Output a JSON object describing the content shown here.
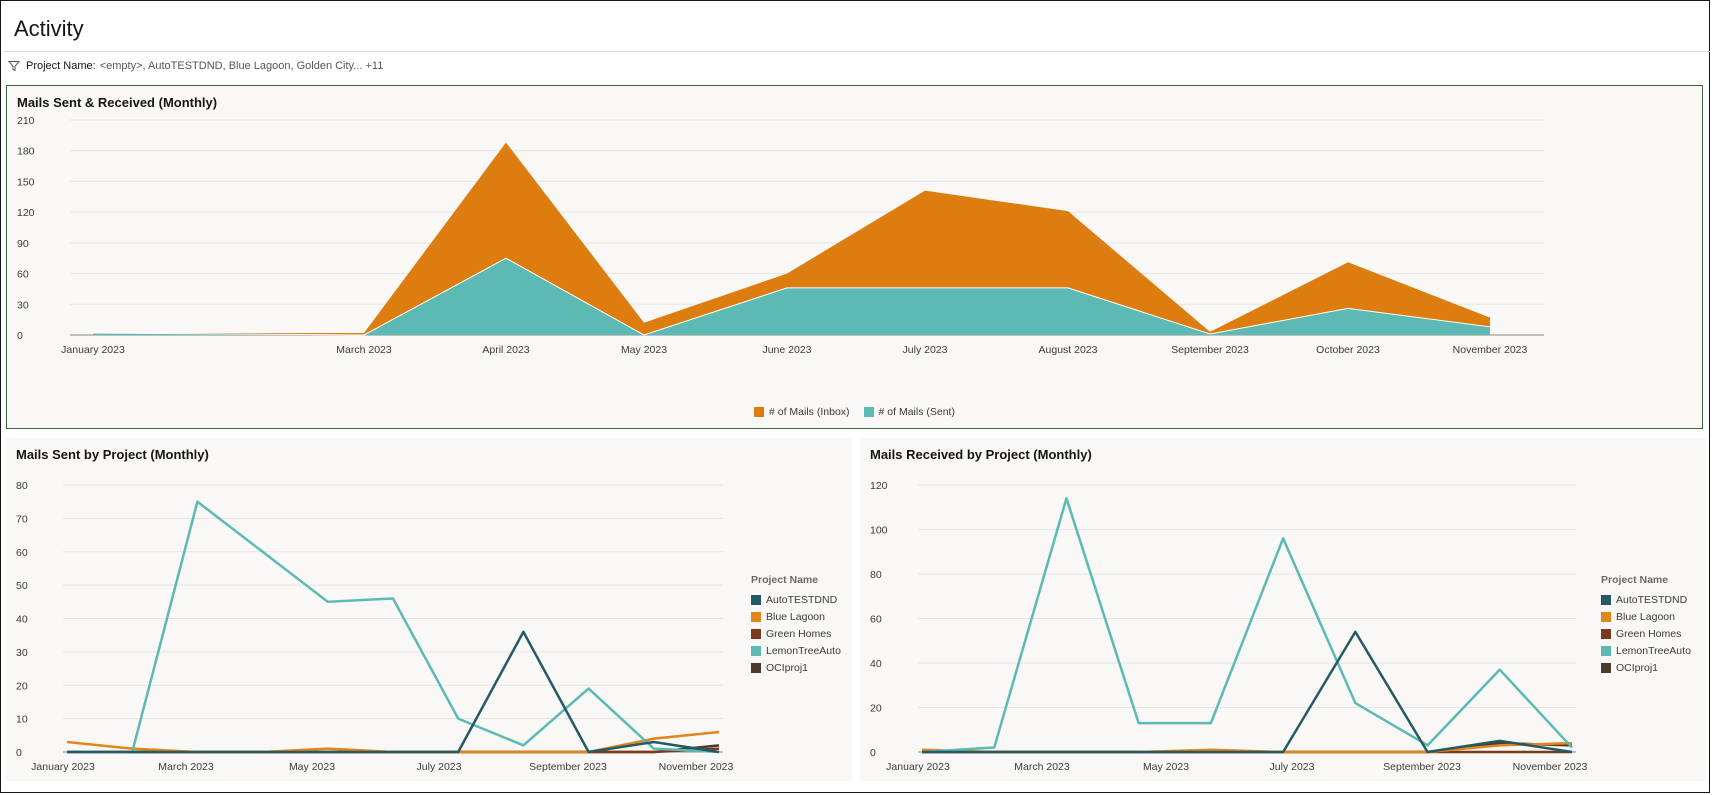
{
  "page": {
    "title": "Activity"
  },
  "filter": {
    "label": "Project Name:",
    "value": "<empty>, AutoTESTDND, Blue Lagoon, Golden City... +11",
    "icon": "filter-icon"
  },
  "colors": {
    "inbox": "#DD7D10",
    "sent": "#5CB9B3",
    "AutoTESTDND": "#235A63",
    "Blue Lagoon": "#E4851C",
    "Green Homes": "#7A3B1C",
    "LemonTreeAuto": "#5CB9B3",
    "OCIproj1": "#4A3A30"
  },
  "charts": {
    "top": {
      "title": "Mails Sent & Received (Monthly)",
      "chart_data": {
        "type": "area",
        "stacked": true,
        "categories": [
          "January 2023",
          "March 2023",
          "April 2023",
          "May 2023",
          "June 2023",
          "July 2023",
          "August 2023",
          "September 2023",
          "October 2023",
          "November 2023"
        ],
        "ylim": [
          0,
          210
        ],
        "yticks": [
          0,
          30,
          60,
          90,
          120,
          150,
          180,
          210
        ],
        "series": [
          {
            "name": "# of Mails (Sent)",
            "values": [
              2,
              0,
              75,
              0,
              46,
              46,
              46,
              1,
              26,
              8
            ]
          },
          {
            "name": "# of Mails (Inbox)",
            "values": [
              0,
              2,
              113,
              12,
              14,
              95,
              75,
              2,
              45,
              9
            ]
          }
        ],
        "legend": "bottom",
        "grid": true
      }
    },
    "sent": {
      "title": "Mails Sent by Project (Monthly)",
      "legend_title": "Project Name",
      "chart_data": {
        "type": "line",
        "xticks": [
          "January 2023",
          "March 2023",
          "May 2023",
          "July 2023",
          "September 2023",
          "November 2023"
        ],
        "ylim": [
          0,
          80
        ],
        "yticks": [
          0,
          10,
          20,
          30,
          40,
          50,
          60,
          70,
          80
        ],
        "legend": "right",
        "series": [
          {
            "name": "AutoTESTDND",
            "values": [
              0,
              0,
              0,
              0,
              0,
              0,
              0,
              36,
              0,
              3,
              0
            ]
          },
          {
            "name": "Blue Lagoon",
            "values": [
              3,
              1,
              0,
              0,
              1,
              0,
              0,
              0,
              0,
              4,
              6
            ]
          },
          {
            "name": "Green Homes",
            "values": [
              0,
              0,
              0,
              0,
              0,
              0,
              0,
              0,
              0,
              0,
              1
            ]
          },
          {
            "name": "LemonTreeAuto",
            "values": [
              0,
              0,
              75,
              60,
              45,
              46,
              10,
              2,
              19,
              1,
              0
            ]
          },
          {
            "name": "OCIproj1",
            "values": [
              0,
              0,
              0,
              0,
              0,
              0,
              0,
              0,
              0,
              0,
              2
            ]
          }
        ]
      }
    },
    "received": {
      "title": "Mails Received by Project (Monthly)",
      "legend_title": "Project Name",
      "chart_data": {
        "type": "line",
        "xticks": [
          "January 2023",
          "March 2023",
          "May 2023",
          "July 2023",
          "September 2023",
          "November 2023"
        ],
        "ylim": [
          0,
          120
        ],
        "yticks": [
          0,
          20,
          40,
          60,
          80,
          100,
          120
        ],
        "legend": "right",
        "series": [
          {
            "name": "AutoTESTDND",
            "values": [
              0,
              0,
              0,
              0,
              0,
              0,
              54,
              0,
              5,
              0
            ]
          },
          {
            "name": "Blue Lagoon",
            "values": [
              1,
              0,
              0,
              0,
              1,
              0,
              0,
              0,
              3,
              4
            ]
          },
          {
            "name": "Green Homes",
            "values": [
              0,
              0,
              0,
              0,
              0,
              0,
              0,
              0,
              0,
              0
            ]
          },
          {
            "name": "LemonTreeAuto",
            "values": [
              0,
              2,
              114,
              13,
              13,
              96,
              22,
              3,
              37,
              2
            ]
          },
          {
            "name": "OCIproj1",
            "values": [
              0,
              0,
              0,
              0,
              0,
              0,
              0,
              0,
              4,
              3
            ]
          }
        ]
      }
    }
  }
}
